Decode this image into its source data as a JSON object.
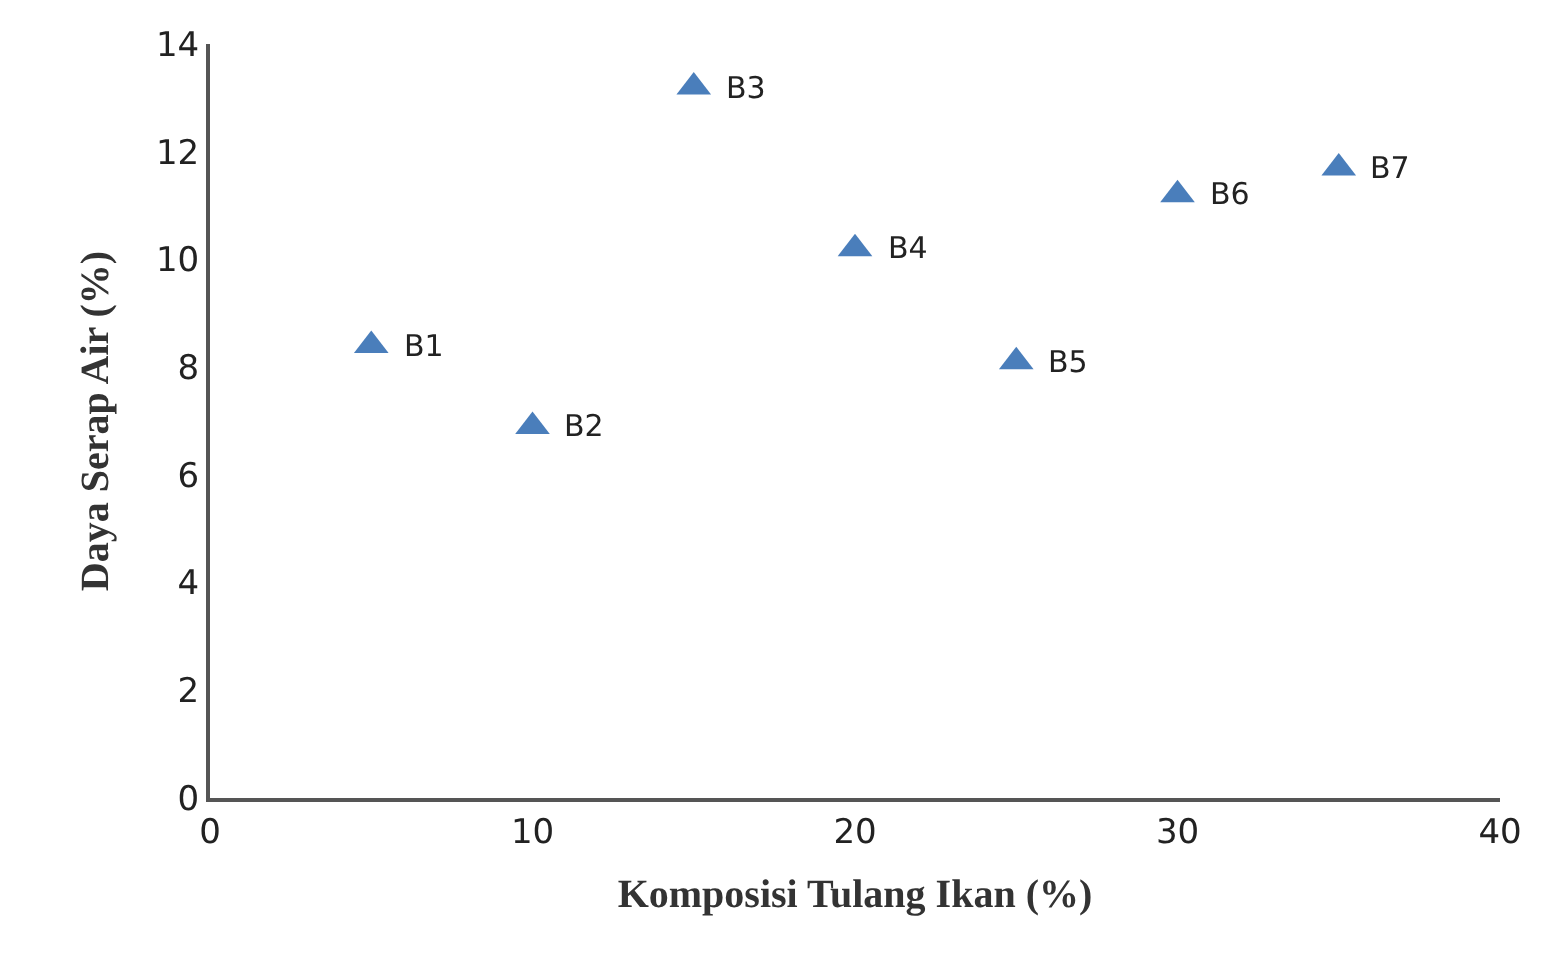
{
  "chart_data": {
    "type": "scatter",
    "xlabel": "Komposisi Tulang Ikan (%)",
    "ylabel": "Daya Serap Air (%)",
    "x": [
      5,
      10,
      15,
      20,
      25,
      30,
      35
    ],
    "series": [
      {
        "color": "#4a7ebb",
        "values": [
          8.4,
          6.9,
          13.2,
          10.2,
          8.1,
          11.2,
          11.7
        ]
      }
    ],
    "marker": "triangle",
    "grid": false,
    "legend": false,
    "xlim": [
      0,
      40
    ],
    "xticks": [
      0,
      10,
      20,
      30,
      40
    ],
    "ylim": [
      0,
      14
    ],
    "yticks": [
      0,
      2,
      4,
      6,
      8,
      10,
      12,
      14
    ],
    "annotations": [
      {
        "text": "B1",
        "x": 5,
        "y": 8.4
      },
      {
        "text": "B2",
        "x": 10,
        "y": 6.9
      },
      {
        "text": "B3",
        "x": 15,
        "y": 13.2
      },
      {
        "text": "B4",
        "x": 20,
        "y": 10.2
      },
      {
        "text": "B5",
        "x": 25,
        "y": 8.1
      },
      {
        "text": "B6",
        "x": 30,
        "y": 11.2
      },
      {
        "text": "B7",
        "x": 35,
        "y": 11.7
      }
    ]
  }
}
